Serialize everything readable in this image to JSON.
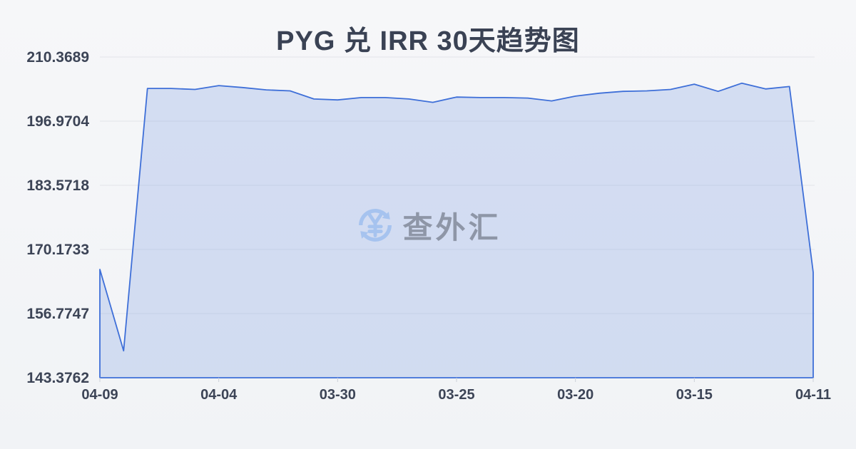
{
  "title": "PYG 兑 IRR 30天趋势图",
  "watermark": {
    "text": "查外汇",
    "icon": "currency-exchange-icon"
  },
  "colors": {
    "background_top": "#f6f7f9",
    "background_bottom": "#f1f3f6",
    "title_text": "#3a4254",
    "axis_text": "#3c4456",
    "line": "#3e6fd8",
    "gridline": "#e2e4e9",
    "watermark_icon": "#a6c3ef",
    "watermark_text": "#8e96a7"
  },
  "chart_data": {
    "type": "area",
    "title": "PYG 兑 IRR 30天趋势图",
    "x_labels": [
      "04-09",
      "04-04",
      "03-30",
      "03-25",
      "03-20",
      "03-15",
      "04-11"
    ],
    "y_ticks": [
      210.3689,
      196.9704,
      183.5718,
      170.1733,
      156.7747,
      143.3762
    ],
    "ylim": [
      143.3762,
      210.3689
    ],
    "grid": true,
    "legend": false,
    "values": [
      166.0,
      149.0,
      203.8,
      203.8,
      203.6,
      204.4,
      204.0,
      203.5,
      203.3,
      201.6,
      201.4,
      201.9,
      201.9,
      201.6,
      200.9,
      202.0,
      201.9,
      201.9,
      201.8,
      201.2,
      202.2,
      202.8,
      203.2,
      203.3,
      203.6,
      204.7,
      203.2,
      204.9,
      203.7,
      204.2,
      165.4
    ]
  }
}
